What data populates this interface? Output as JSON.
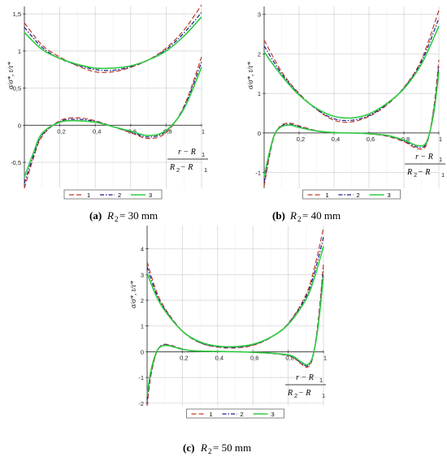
{
  "colors": {
    "series1": "#c0392b",
    "series2": "#1a1a8c",
    "series3": "#2ecc40",
    "grid": "#d0d0d0"
  },
  "chart_data": [
    {
      "type": "line",
      "caption": {
        "label": "(a)",
        "var": "R",
        "sub": "2",
        "rest": " = 30  mm"
      },
      "ylabel": "σ/σ*, τ/τ*",
      "xlabel": {
        "num": "r − R",
        "numsub": "1",
        "den": "R",
        "densub": "2",
        "den2": " − R",
        "den2sub": "1"
      },
      "xlim": [
        0,
        1
      ],
      "ylim": [
        -0.85,
        1.6
      ],
      "xticks": [
        {
          "v": 0.2,
          "t": "0,2"
        },
        {
          "v": 0.4,
          "t": "0,4"
        },
        {
          "v": 0.6,
          "t": "0,6"
        },
        {
          "v": 0.8,
          "t": "0,8"
        },
        {
          "v": 1,
          "t": "1"
        }
      ],
      "yticks": [
        {
          "v": -0.5,
          "t": "-0,5"
        },
        {
          "v": 0,
          "t": "0"
        },
        {
          "v": 0.5,
          "t": "0,5"
        },
        {
          "v": 1,
          "t": "1"
        },
        {
          "v": 1.5,
          "t": "1,5"
        }
      ],
      "legend": [
        "1",
        "2",
        "3"
      ],
      "series": [
        {
          "curve": "tau",
          "x": [
            0,
            0.1,
            0.2,
            0.3,
            0.4,
            0.5,
            0.6,
            0.7,
            0.8,
            0.9,
            1
          ],
          "y": [
            1.38,
            1.08,
            0.92,
            0.8,
            0.72,
            0.72,
            0.78,
            0.88,
            1.04,
            1.28,
            1.62
          ]
        },
        {
          "curve": "tau",
          "x": [
            0,
            0.1,
            0.2,
            0.3,
            0.4,
            0.5,
            0.6,
            0.7,
            0.8,
            0.9,
            1
          ],
          "y": [
            1.32,
            1.05,
            0.9,
            0.81,
            0.75,
            0.74,
            0.79,
            0.88,
            1.02,
            1.24,
            1.52
          ]
        },
        {
          "curve": "tau",
          "x": [
            0,
            0.1,
            0.2,
            0.3,
            0.4,
            0.5,
            0.6,
            0.7,
            0.8,
            0.9,
            1
          ],
          "y": [
            1.25,
            1.02,
            0.9,
            0.82,
            0.77,
            0.77,
            0.8,
            0.88,
            1.0,
            1.2,
            1.46
          ]
        },
        {
          "curve": "sigma",
          "x": [
            0,
            0.05,
            0.1,
            0.2,
            0.3,
            0.4,
            0.5,
            0.6,
            0.7,
            0.8,
            0.9,
            1
          ],
          "y": [
            -0.85,
            -0.45,
            -0.15,
            0.06,
            0.1,
            0.06,
            -0.02,
            -0.1,
            -0.18,
            -0.1,
            0.25,
            0.92
          ]
        },
        {
          "curve": "sigma",
          "x": [
            0,
            0.05,
            0.1,
            0.2,
            0.3,
            0.4,
            0.5,
            0.6,
            0.7,
            0.8,
            0.9,
            1
          ],
          "y": [
            -0.78,
            -0.42,
            -0.13,
            0.05,
            0.08,
            0.05,
            -0.02,
            -0.09,
            -0.16,
            -0.08,
            0.24,
            0.85
          ]
        },
        {
          "curve": "sigma",
          "x": [
            0,
            0.05,
            0.1,
            0.2,
            0.3,
            0.4,
            0.5,
            0.6,
            0.7,
            0.8,
            0.9,
            1
          ],
          "y": [
            -0.7,
            -0.38,
            -0.11,
            0.04,
            0.06,
            0.04,
            -0.02,
            -0.08,
            -0.14,
            -0.07,
            0.22,
            0.78
          ]
        }
      ]
    },
    {
      "type": "line",
      "caption": {
        "label": "(b)",
        "var": "R",
        "sub": "2",
        "rest": " = 40  mm"
      },
      "ylabel": "σ/σ*, τ/τ*",
      "xlabel": {
        "num": "r − R",
        "numsub": "1",
        "den": "R",
        "densub": "2",
        "den2": " − R",
        "den2sub": "1"
      },
      "xlim": [
        0,
        1
      ],
      "ylim": [
        -1.4,
        3.2
      ],
      "xticks": [
        {
          "v": 0.2,
          "t": "0,2"
        },
        {
          "v": 0.4,
          "t": "0,4"
        },
        {
          "v": 0.6,
          "t": "0,6"
        },
        {
          "v": 0.8,
          "t": "0,8"
        },
        {
          "v": 1,
          "t": "1"
        }
      ],
      "yticks": [
        {
          "v": -1,
          "t": "-1"
        },
        {
          "v": 0,
          "t": "0"
        },
        {
          "v": 1,
          "t": "1"
        },
        {
          "v": 2,
          "t": "2"
        },
        {
          "v": 3,
          "t": "3"
        }
      ],
      "legend": [
        "1",
        "2",
        "3"
      ],
      "series": [
        {
          "curve": "tau",
          "x": [
            0,
            0.1,
            0.2,
            0.3,
            0.4,
            0.5,
            0.6,
            0.7,
            0.8,
            0.9,
            1
          ],
          "y": [
            2.35,
            1.55,
            1.0,
            0.6,
            0.32,
            0.28,
            0.42,
            0.7,
            1.15,
            1.85,
            3.1
          ]
        },
        {
          "curve": "tau",
          "x": [
            0,
            0.1,
            0.2,
            0.3,
            0.4,
            0.5,
            0.6,
            0.7,
            0.8,
            0.9,
            1
          ],
          "y": [
            2.2,
            1.5,
            0.98,
            0.6,
            0.36,
            0.32,
            0.44,
            0.72,
            1.14,
            1.8,
            2.9
          ]
        },
        {
          "curve": "tau",
          "x": [
            0,
            0.1,
            0.2,
            0.3,
            0.4,
            0.5,
            0.6,
            0.7,
            0.8,
            0.9,
            1
          ],
          "y": [
            2.05,
            1.45,
            0.96,
            0.62,
            0.42,
            0.38,
            0.48,
            0.74,
            1.12,
            1.74,
            2.7
          ]
        },
        {
          "curve": "sigma",
          "x": [
            0,
            0.03,
            0.06,
            0.1,
            0.15,
            0.2,
            0.3,
            0.4,
            0.5,
            0.6,
            0.7,
            0.8,
            0.88,
            0.93,
            0.97,
            1
          ],
          "y": [
            -1.35,
            -0.6,
            -0.05,
            0.2,
            0.25,
            0.18,
            0.06,
            0.01,
            0.0,
            -0.02,
            -0.08,
            -0.22,
            -0.4,
            -0.28,
            0.6,
            1.85
          ]
        },
        {
          "curve": "sigma",
          "x": [
            0,
            0.03,
            0.06,
            0.1,
            0.15,
            0.2,
            0.3,
            0.4,
            0.5,
            0.6,
            0.7,
            0.8,
            0.88,
            0.93,
            0.97,
            1
          ],
          "y": [
            -1.25,
            -0.55,
            -0.04,
            0.18,
            0.22,
            0.16,
            0.05,
            0.01,
            0.0,
            -0.02,
            -0.07,
            -0.2,
            -0.36,
            -0.25,
            0.55,
            1.7
          ]
        },
        {
          "curve": "sigma",
          "x": [
            0,
            0.03,
            0.06,
            0.1,
            0.15,
            0.2,
            0.3,
            0.4,
            0.5,
            0.6,
            0.7,
            0.8,
            0.88,
            0.93,
            0.97,
            1
          ],
          "y": [
            -1.1,
            -0.5,
            -0.03,
            0.16,
            0.2,
            0.14,
            0.05,
            0.01,
            0.0,
            -0.02,
            -0.06,
            -0.18,
            -0.32,
            -0.22,
            0.48,
            1.55
          ]
        }
      ]
    },
    {
      "type": "line",
      "caption": {
        "label": "(c)",
        "var": "R",
        "sub": "2",
        "rest": " = 50  mm"
      },
      "ylabel": "σ/σ*, τ/τ*",
      "xlabel": {
        "num": "r − R",
        "numsub": "1",
        "den": "R",
        "densub": "2",
        "den2": " − R",
        "den2sub": "1"
      },
      "xlim": [
        0,
        1
      ],
      "ylim": [
        -2.1,
        4.9
      ],
      "xticks": [
        {
          "v": 0.2,
          "t": "0,2"
        },
        {
          "v": 0.4,
          "t": "0,4"
        },
        {
          "v": 0.6,
          "t": "0,6"
        },
        {
          "v": 0.8,
          "t": "0,8"
        },
        {
          "v": 1,
          "t": "1"
        }
      ],
      "yticks": [
        {
          "v": -2,
          "t": "-2"
        },
        {
          "v": -1,
          "t": "-1"
        },
        {
          "v": 0,
          "t": "0"
        },
        {
          "v": 1,
          "t": "1"
        },
        {
          "v": 2,
          "t": "2"
        },
        {
          "v": 3,
          "t": "3"
        },
        {
          "v": 4,
          "t": "4"
        }
      ],
      "legend": [
        "1",
        "2",
        "3"
      ],
      "series": [
        {
          "curve": "tau",
          "x": [
            0,
            0.05,
            0.1,
            0.2,
            0.3,
            0.4,
            0.5,
            0.6,
            0.7,
            0.8,
            0.9,
            0.95,
            1
          ],
          "y": [
            3.5,
            2.4,
            1.7,
            0.8,
            0.35,
            0.18,
            0.15,
            0.25,
            0.55,
            1.1,
            2.2,
            3.3,
            4.8
          ]
        },
        {
          "curve": "tau",
          "x": [
            0,
            0.05,
            0.1,
            0.2,
            0.3,
            0.4,
            0.5,
            0.6,
            0.7,
            0.8,
            0.9,
            0.95,
            1
          ],
          "y": [
            3.3,
            2.3,
            1.65,
            0.8,
            0.36,
            0.2,
            0.17,
            0.27,
            0.55,
            1.08,
            2.12,
            3.1,
            4.45
          ]
        },
        {
          "curve": "tau",
          "x": [
            0,
            0.05,
            0.1,
            0.2,
            0.3,
            0.4,
            0.5,
            0.6,
            0.7,
            0.8,
            0.9,
            0.95,
            1
          ],
          "y": [
            3.05,
            2.2,
            1.6,
            0.8,
            0.38,
            0.22,
            0.2,
            0.29,
            0.56,
            1.06,
            2.02,
            2.9,
            4.1
          ]
        },
        {
          "curve": "sigma",
          "x": [
            0,
            0.02,
            0.05,
            0.08,
            0.12,
            0.18,
            0.25,
            0.4,
            0.6,
            0.8,
            0.87,
            0.91,
            0.94,
            0.97,
            1
          ],
          "y": [
            -2.1,
            -1.0,
            -0.1,
            0.25,
            0.28,
            0.15,
            0.05,
            0.01,
            -0.02,
            -0.15,
            -0.45,
            -0.6,
            -0.2,
            1.2,
            3.4
          ]
        },
        {
          "curve": "sigma",
          "x": [
            0,
            0.02,
            0.05,
            0.08,
            0.12,
            0.18,
            0.25,
            0.4,
            0.6,
            0.8,
            0.87,
            0.91,
            0.94,
            0.97,
            1
          ],
          "y": [
            -1.9,
            -0.9,
            -0.08,
            0.23,
            0.26,
            0.14,
            0.04,
            0.01,
            -0.02,
            -0.14,
            -0.42,
            -0.55,
            -0.18,
            1.1,
            3.2
          ]
        },
        {
          "curve": "sigma",
          "x": [
            0,
            0.02,
            0.05,
            0.08,
            0.12,
            0.18,
            0.25,
            0.4,
            0.6,
            0.8,
            0.87,
            0.91,
            0.94,
            0.97,
            1
          ],
          "y": [
            -1.7,
            -0.8,
            -0.06,
            0.21,
            0.24,
            0.13,
            0.04,
            0.01,
            -0.02,
            -0.12,
            -0.38,
            -0.5,
            -0.15,
            1.0,
            2.95
          ]
        }
      ]
    }
  ]
}
